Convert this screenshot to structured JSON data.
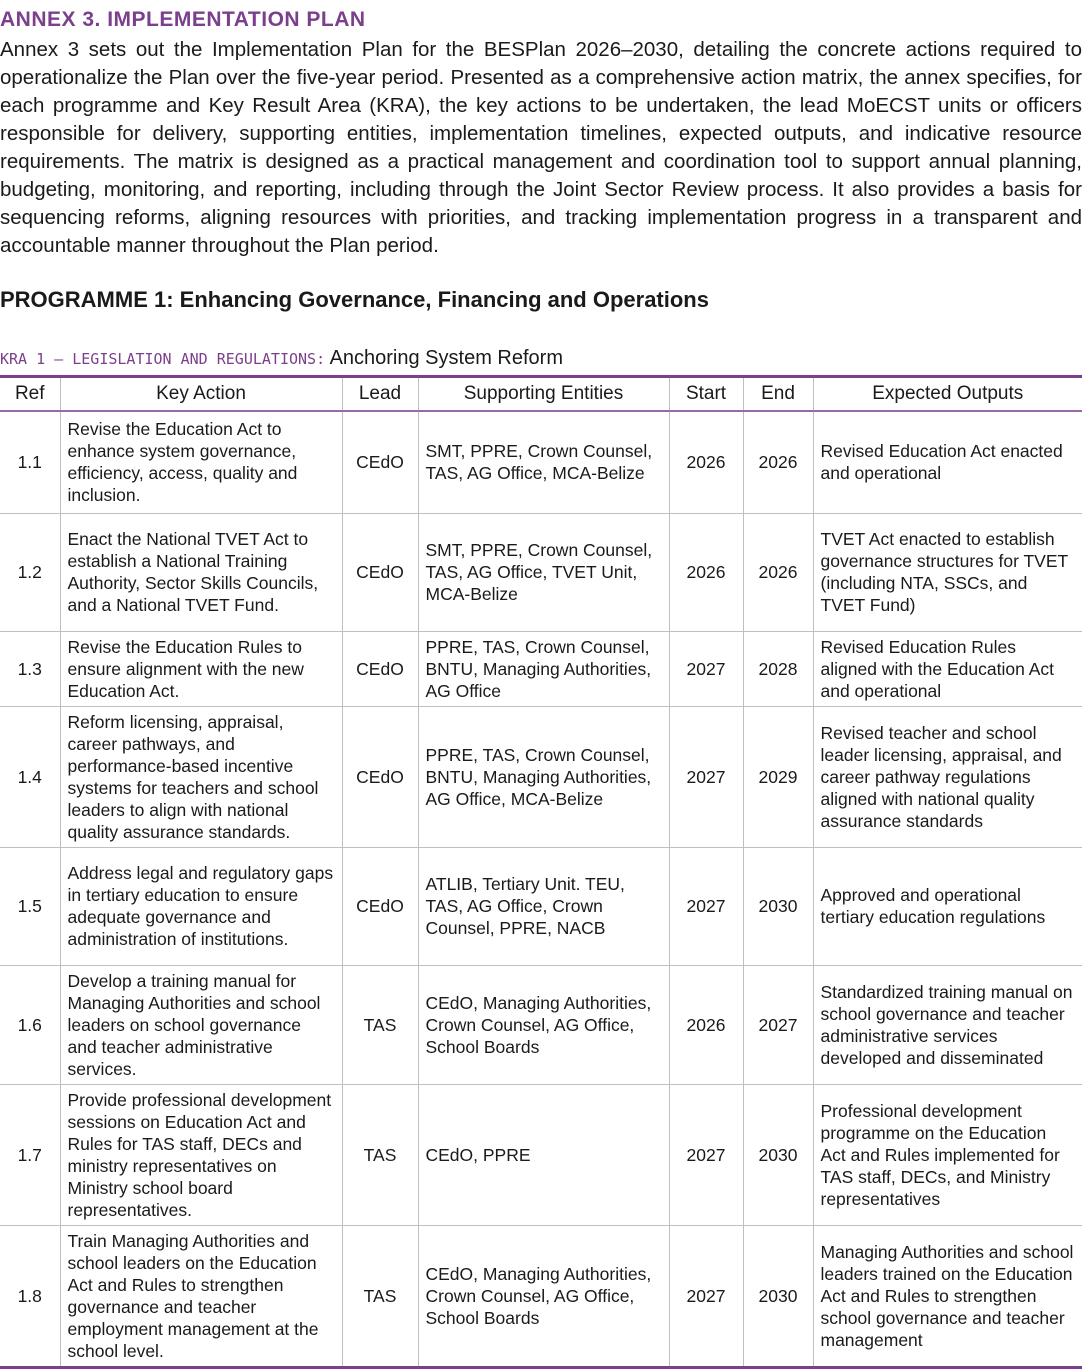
{
  "annex_title": "ANNEX 3. IMPLEMENTATION PLAN",
  "intro": "Annex 3 sets out the Implementation Plan for the BESPlan 2026–2030, detailing the concrete actions required to operationalize the Plan over the five-year period. Presented as a comprehensive action matrix, the annex specifies, for each programme and Key Result Area (KRA), the key actions to be undertaken, the lead MoECST units or officers responsible for delivery, supporting entities, implementation timelines, expected outputs, and indicative resource requirements. The matrix is designed as a practical management and coordination tool to support annual planning, budgeting, monitoring, and reporting, including through the Joint Sector Review process. It also provides a basis for sequencing reforms, aligning resources with priorities, and tracking implementation progress in a transparent and accountable manner throughout the Plan period.",
  "programme_title": "PROGRAMME 1: Enhancing Governance, Financing and Operations",
  "kra": {
    "prefix": "KRA 1 – LEGISLATION AND REGULATIONS:",
    "name": "Anchoring System Reform"
  },
  "table": {
    "headers": {
      "ref": "Ref",
      "action": "Key Action",
      "lead": "Lead",
      "support": "Supporting Entities",
      "start": "Start",
      "end": "End",
      "outputs": "Expected Outputs"
    },
    "rows": [
      {
        "ref": "1.1",
        "action": "Revise the Education Act to enhance system governance, efficiency, access, quality and inclusion.",
        "lead": "CEdO",
        "support": "SMT, PPRE, Crown Counsel, TAS, AG Office, MCA-Belize",
        "start": "2026",
        "end": "2026",
        "outputs": "Revised Education Act enacted and operational"
      },
      {
        "ref": "1.2",
        "action": "Enact the National TVET Act to establish a National Training Authority, Sector Skills Councils, and a National TVET Fund.",
        "lead": "CEdO",
        "support": "SMT, PPRE, Crown Counsel, TAS, AG Office, TVET Unit, MCA-Belize",
        "start": "2026",
        "end": "2026",
        "outputs": "TVET Act enacted to establish governance structures for TVET (including NTA, SSCs, and TVET Fund)"
      },
      {
        "ref": "1.3",
        "action": "Revise the Education Rules to ensure alignment with the new Education Act.",
        "lead": "CEdO",
        "support": "PPRE, TAS, Crown Counsel, BNTU, Managing Authorities, AG Office",
        "start": "2027",
        "end": "2028",
        "outputs": "Revised Education Rules aligned with the Education Act and operational"
      },
      {
        "ref": "1.4",
        "action": "Reform licensing, appraisal, career pathways, and performance-based incentive systems for teachers and school leaders to align with national quality assurance standards.",
        "lead": "CEdO",
        "support": "PPRE, TAS, Crown Counsel, BNTU, Managing Authorities, AG Office, MCA-Belize",
        "start": "2027",
        "end": "2029",
        "outputs": "Revised teacher and school leader licensing, appraisal, and career pathway regulations aligned with national quality assurance standards"
      },
      {
        "ref": "1.5",
        "action": "Address legal and regulatory gaps in tertiary education to ensure adequate governance and administration of institutions.",
        "lead": "CEdO",
        "support": "ATLIB, Tertiary Unit. TEU, TAS, AG Office, Crown Counsel, PPRE, NACB",
        "start": "2027",
        "end": "2030",
        "outputs": "Approved and operational tertiary education regulations"
      },
      {
        "ref": "1.6",
        "action": "Develop a training manual for Managing Authorities and school leaders on school governance and teacher administrative services.",
        "lead": "TAS",
        "support": "CEdO, Managing Authorities, Crown Counsel, AG Office, School Boards",
        "start": "2026",
        "end": "2027",
        "outputs": "Standardized training manual on school governance and teacher administrative services developed and disseminated"
      },
      {
        "ref": "1.7",
        "action": "Provide professional development sessions on Education Act and Rules for TAS staff, DECs and ministry representatives on Ministry school board representatives.",
        "lead": "TAS",
        "support": "CEdO, PPRE",
        "start": "2027",
        "end": "2030",
        "outputs": "Professional development programme on the Education Act and Rules implemented for TAS staff, DECs, and Ministry representatives"
      },
      {
        "ref": "1.8",
        "action": "Train Managing Authorities and school leaders on the Education Act and Rules to strengthen governance and teacher employment management at the school level.",
        "lead": "TAS",
        "support": "CEdO, Managing Authorities, Crown Counsel, AG Office, School Boards",
        "start": "2027",
        "end": "2030",
        "outputs": "Managing Authorities and school leaders trained on the Education Act and Rules to strengthen school governance and teacher management"
      }
    ]
  }
}
